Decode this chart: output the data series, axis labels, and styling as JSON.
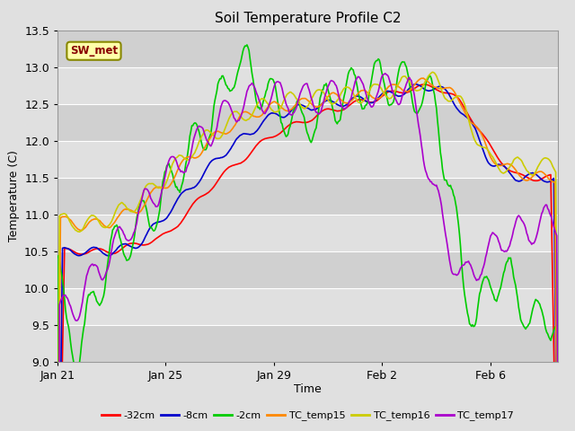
{
  "title": "Soil Temperature Profile C2",
  "ylabel": "Temperature (C)",
  "xlabel": "Time",
  "ylim": [
    9.0,
    13.5
  ],
  "yticks": [
    9.0,
    9.5,
    10.0,
    10.5,
    11.0,
    11.5,
    12.0,
    12.5,
    13.0,
    13.5
  ],
  "background_color": "#e0e0e0",
  "plot_bg_color": "#e0e0e0",
  "grid_color": "#ffffff",
  "band_colors": [
    "#d0d0d0",
    "#e0e0e0"
  ],
  "series": [
    {
      "label": "-32cm",
      "color": "#ff0000",
      "lw": 1.2
    },
    {
      "label": "-8cm",
      "color": "#0000cc",
      "lw": 1.2
    },
    {
      "label": "-2cm",
      "color": "#00cc00",
      "lw": 1.2
    },
    {
      "label": "TC_temp15",
      "color": "#ff8800",
      "lw": 1.2
    },
    {
      "label": "TC_temp16",
      "color": "#cccc00",
      "lw": 1.2
    },
    {
      "label": "TC_temp17",
      "color": "#aa00cc",
      "lw": 1.2
    }
  ],
  "annotation_text": "SW_met",
  "annotation_color": "#880000",
  "annotation_bg": "#ffffaa",
  "annotation_border": "#888800",
  "xlim": [
    0,
    18.5
  ],
  "xtick_pos": [
    0,
    4,
    8,
    12,
    16
  ],
  "xtick_labels": [
    "Jan 21",
    "Jan 25",
    "Jan 29",
    "Feb 2",
    "Feb 6"
  ]
}
